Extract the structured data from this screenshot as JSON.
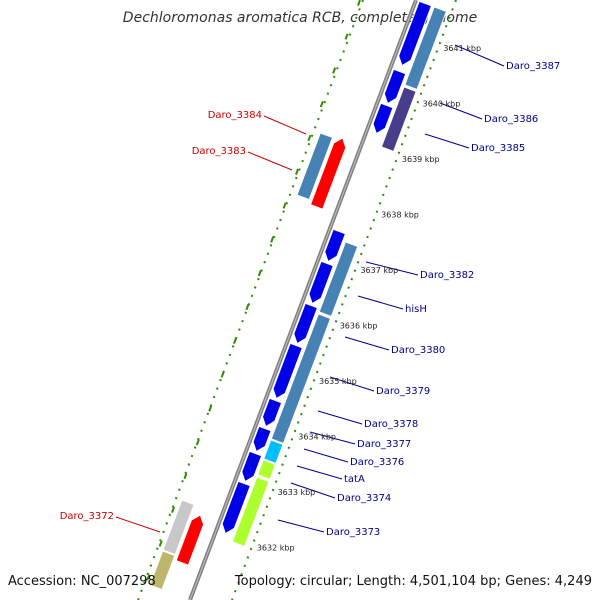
{
  "title": "Dechloromonas aromatica RCB, complete genome",
  "accession": "Accession: NC_007298",
  "summary": "Topology: circular; Length: 4,501,104 bp; Genes: 4,249",
  "ticks": [
    {
      "label": "3641 kbp",
      "kbp": 3641
    },
    {
      "label": "3640 kbp",
      "kbp": 3640
    },
    {
      "label": "3639 kbp",
      "kbp": 3639
    },
    {
      "label": "3638 kbp",
      "kbp": 3638
    },
    {
      "label": "3637 kbp",
      "kbp": 3637
    },
    {
      "label": "3636 kbp",
      "kbp": 3636
    },
    {
      "label": "3635 kbp",
      "kbp": 3635
    },
    {
      "label": "3634 kbp",
      "kbp": 3634
    },
    {
      "label": "3633 kbp",
      "kbp": 3633
    },
    {
      "label": "3632 kbp",
      "kbp": 3632
    }
  ],
  "gene_labels": {
    "right": [
      "Daro_3387",
      "Daro_3386",
      "Daro_3385",
      "Daro_3382",
      "hisH",
      "Daro_3380",
      "Daro_3379",
      "Daro_3378",
      "Daro_3377",
      "Daro_3376",
      "tatA",
      "Daro_3374",
      "Daro_3373"
    ],
    "left": [
      "Daro_3384",
      "Daro_3383",
      "Daro_3372"
    ]
  },
  "colors": {
    "backbone": "#808080",
    "tick_dots": "#2e8b00",
    "forward_gene": "#0000e6",
    "reverse_gene": "#4682b4",
    "other_strand_gene": "#ff0000",
    "right_label": "#00008b",
    "left_label": "#cc0000",
    "purple_gene": "#483d8b",
    "cyan_gene": "#00bfff",
    "lime_gene": "#adff2f",
    "gray_gene": "#c8c8c8",
    "tan_gene": "#bdb76b"
  }
}
